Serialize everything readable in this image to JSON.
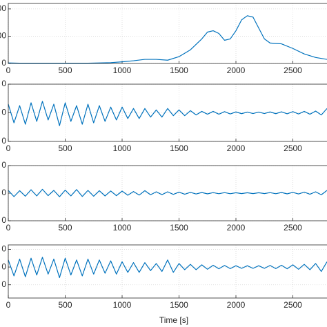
{
  "chart_data": [
    {
      "type": "line",
      "xlim": [
        0,
        2800
      ],
      "ylim": [
        0,
        220
      ],
      "xticks": [
        0,
        500,
        1000,
        1500,
        2000,
        2500
      ],
      "yticks": [
        {
          "value": 200,
          "label": "00"
        },
        {
          "value": 100,
          "label": "00"
        },
        0
      ],
      "grid": true,
      "series": [
        {
          "color": "#0072bd",
          "x": [
            0,
            100,
            200,
            300,
            400,
            500,
            600,
            700,
            800,
            900,
            1000,
            1100,
            1200,
            1300,
            1400,
            1500,
            1600,
            1700,
            1750,
            1800,
            1850,
            1900,
            1950,
            2000,
            2050,
            2100,
            2150,
            2200,
            2250,
            2300,
            2400,
            2500,
            2600,
            2700,
            2800
          ],
          "values": [
            2,
            1,
            1,
            1,
            1,
            1,
            1,
            1,
            2,
            3,
            6,
            10,
            15,
            15,
            12,
            25,
            50,
            90,
            115,
            120,
            110,
            85,
            90,
            120,
            160,
            175,
            170,
            130,
            90,
            75,
            72,
            55,
            35,
            22,
            15
          ]
        }
      ]
    },
    {
      "type": "line",
      "xlim": [
        0,
        2800
      ],
      "ylim": [
        -20,
        20
      ],
      "xticks": [
        0,
        500,
        1000,
        1500,
        2000,
        2500
      ],
      "yticks": [
        {
          "value": 20,
          "label": "0"
        },
        0,
        {
          "value": -20,
          "label": "0"
        }
      ],
      "grid": true,
      "series": [
        {
          "color": "#0072bd",
          "x": [
            0,
            50,
            100,
            150,
            200,
            250,
            300,
            350,
            400,
            450,
            500,
            550,
            600,
            650,
            700,
            750,
            800,
            850,
            900,
            950,
            1000,
            1050,
            1100,
            1150,
            1200,
            1250,
            1300,
            1350,
            1400,
            1450,
            1500,
            1550,
            1600,
            1650,
            1700,
            1750,
            1800,
            1850,
            1900,
            1950,
            2000,
            2050,
            2100,
            2150,
            2200,
            2250,
            2300,
            2350,
            2400,
            2450,
            2500,
            2550,
            2600,
            2650,
            2700,
            2750,
            2800
          ],
          "values": [
            6,
            -7,
            5,
            -8,
            7,
            -6,
            8,
            -5,
            6,
            -9,
            7,
            -6,
            5,
            -8,
            6,
            -7,
            5,
            -6,
            4,
            -5,
            4,
            -4,
            3,
            -4,
            3,
            -3,
            2,
            -3,
            3,
            -2,
            2,
            -2,
            1.5,
            -1.5,
            1,
            -1,
            1,
            -1,
            0.8,
            -0.8,
            0.6,
            -0.6,
            0.5,
            -0.5,
            0.5,
            -0.5,
            0.6,
            -0.6,
            0.7,
            -0.7,
            0.8,
            -0.8,
            1,
            -1,
            1.2,
            -1.5,
            3
          ]
        }
      ]
    },
    {
      "type": "line",
      "xlim": [
        0,
        2800
      ],
      "ylim": [
        -20,
        20
      ],
      "xticks": [
        0,
        500,
        1000,
        1500,
        2000,
        2500
      ],
      "yticks": [
        {
          "value": 20,
          "label": "0"
        },
        0,
        {
          "value": -20,
          "label": "0"
        }
      ],
      "grid": true,
      "series": [
        {
          "color": "#0072bd",
          "x": [
            0,
            50,
            100,
            150,
            200,
            250,
            300,
            350,
            400,
            450,
            500,
            550,
            600,
            650,
            700,
            750,
            800,
            850,
            900,
            950,
            1000,
            1050,
            1100,
            1150,
            1200,
            1250,
            1300,
            1350,
            1400,
            1450,
            1500,
            1550,
            1600,
            1650,
            1700,
            1750,
            1800,
            1850,
            1900,
            1950,
            2000,
            2050,
            2100,
            2150,
            2200,
            2250,
            2300,
            2350,
            2400,
            2450,
            2500,
            2550,
            2600,
            2650,
            2700,
            2750,
            2800
          ],
          "values": [
            2,
            -2.5,
            1.8,
            -2.2,
            2.5,
            -2,
            2.8,
            -1.8,
            2,
            -2.6,
            2.2,
            -2,
            2.6,
            -2.4,
            2,
            -2.2,
            1.8,
            -2,
            1.6,
            -1.8,
            1.5,
            -1.5,
            1.2,
            -1.4,
            1.8,
            -1.2,
            1,
            -1.1,
            1,
            -0.9,
            0.8,
            -0.8,
            0.6,
            -0.6,
            0.5,
            -0.5,
            0.4,
            -0.4,
            0.4,
            -0.4,
            0.3,
            -0.3,
            0.3,
            -0.3,
            0.3,
            -0.3,
            0.4,
            -0.4,
            0.5,
            -0.5,
            0.6,
            -0.6,
            0.8,
            -0.8,
            1,
            -1.2,
            2
          ]
        }
      ]
    },
    {
      "type": "line",
      "xlim": [
        0,
        2800
      ],
      "ylim": [
        -35,
        25
      ],
      "xticks": [
        0,
        500,
        1000,
        1500,
        2000,
        2500
      ],
      "yticks": [
        {
          "value": 20,
          "label": "0"
        },
        0,
        {
          "value": -20,
          "label": "0"
        }
      ],
      "grid": true,
      "xlabel": "Time [s]",
      "series": [
        {
          "color": "#0072bd",
          "x": [
            0,
            50,
            100,
            150,
            200,
            250,
            300,
            350,
            400,
            450,
            500,
            550,
            600,
            650,
            700,
            750,
            800,
            850,
            900,
            950,
            1000,
            1050,
            1100,
            1150,
            1200,
            1250,
            1300,
            1350,
            1400,
            1450,
            1500,
            1550,
            1600,
            1650,
            1700,
            1750,
            1800,
            1850,
            1900,
            1950,
            2000,
            2050,
            2100,
            2150,
            2200,
            2250,
            2300,
            2350,
            2400,
            2450,
            2500,
            2550,
            2600,
            2650,
            2700,
            2750,
            2800
          ],
          "values": [
            8,
            -10,
            9,
            -11,
            10,
            -9,
            11,
            -8,
            9,
            -12,
            10,
            -9,
            8,
            -10,
            9,
            -8,
            8,
            -7,
            7,
            -8,
            6,
            -6,
            5,
            -6,
            5,
            -4,
            4,
            -5,
            8,
            -6,
            4,
            -3,
            3,
            -3,
            2.5,
            -2.5,
            2,
            -2,
            1.8,
            -1.8,
            1.5,
            -1.5,
            1.5,
            -1.5,
            1.5,
            -1.5,
            1.8,
            -1.8,
            2,
            -2,
            2.5,
            -2.5,
            3,
            -3,
            4,
            -5,
            6
          ]
        }
      ]
    }
  ]
}
